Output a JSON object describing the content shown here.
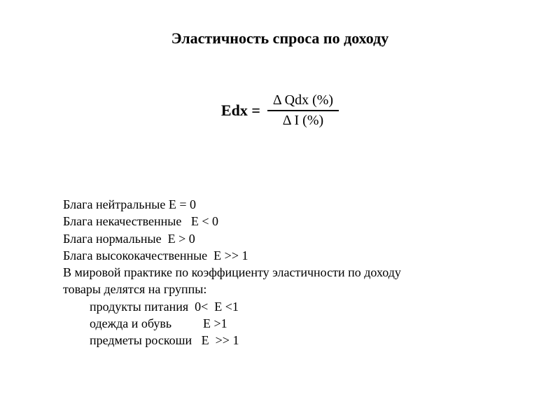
{
  "title": "Эластичность спроса по доходу",
  "formula": {
    "lhs": "Edx =",
    "numerator": "Δ Qdx (%)",
    "denominator": "Δ I (%)"
  },
  "lines": {
    "l1": "Блага нейтральные Е = 0",
    "l2": "Блага некачественные   Е < 0",
    "l3": "Блага нормальные  Е > 0",
    "l4": "Блага высококачественные  Е >> 1",
    "l5": "В мировой практике по коэффициенту эластичности по доходу",
    "l6": "товары делятся на группы:",
    "l7": "продукты питания  0<  Е <1",
    "l8": "одежда и обувь          Е >1",
    "l9": "предметы роскоши   Е  >> 1"
  },
  "style": {
    "background_color": "#ffffff",
    "text_color": "#000000",
    "title_fontsize": 22,
    "body_fontsize": 18,
    "formula_fontsize": 22,
    "font_family": "Times New Roman"
  }
}
